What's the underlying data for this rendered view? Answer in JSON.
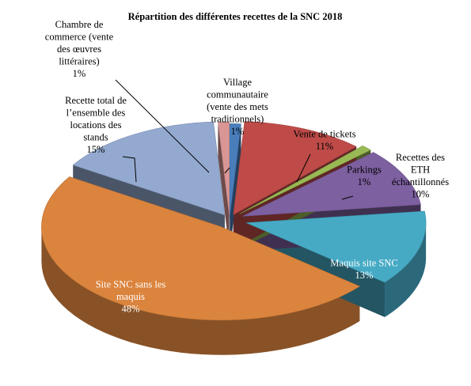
{
  "chart_data": {
    "type": "pie",
    "variant": "3d-exploded",
    "title": "Répartition des différentes recettes de la SNC 2018",
    "unit": "%",
    "slices": [
      {
        "name": "Village communautaire (vente des mets traditionnels)",
        "label_lines": [
          "Village",
          "communautaire",
          "(vente des mets",
          "traditionnels)"
        ],
        "value": 1,
        "value_label": "1%",
        "color": "#4a7ebb"
      },
      {
        "name": "Vente de tickets",
        "label_lines": [
          "Vente de tickets"
        ],
        "value": 11,
        "value_label": "11%",
        "color": "#be4b48"
      },
      {
        "name": "Parkings",
        "label_lines": [
          "Parkings"
        ],
        "value": 1,
        "value_label": "1%",
        "color": "#98b954"
      },
      {
        "name": "Recettes des ETH échantillonnés",
        "label_lines": [
          "Recettes des",
          "ETH",
          "échantillonnés"
        ],
        "value": 10,
        "value_label": "10%",
        "color": "#7d60a0"
      },
      {
        "name": "Maquis site SNC",
        "label_lines": [
          "Maquis site SNC"
        ],
        "value": 13,
        "value_label": "13%",
        "color": "#46aac5"
      },
      {
        "name": "Site SNC sans les maquis",
        "label_lines": [
          "Site SNC sans les",
          "maquis"
        ],
        "value": 48,
        "value_label": "48%",
        "color": "#db843d"
      },
      {
        "name": "Recette total de l’ensemble des locations des stands",
        "label_lines": [
          "Recette total de",
          "l’ensemble des",
          "locations des",
          "stands"
        ],
        "value": 15,
        "value_label": "15%",
        "color": "#93a9cf"
      },
      {
        "name": "Chambre de commerce (vente des œuvres littéraires)",
        "label_lines": [
          "Chambre de",
          "commerce (vente",
          "des œuvres",
          "littéraires)"
        ],
        "value": 1,
        "value_label": "1%",
        "color": "#d99694"
      }
    ]
  }
}
